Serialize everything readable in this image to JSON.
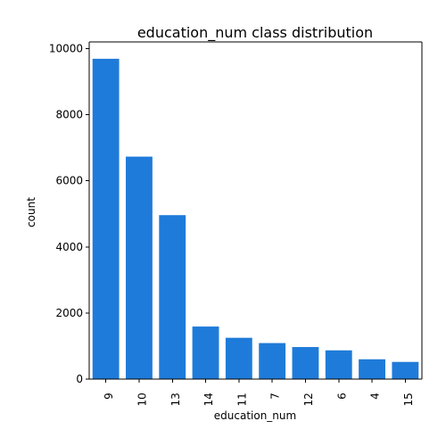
{
  "chart_data": {
    "type": "bar",
    "title": "education_num class distribution",
    "xlabel": "education_num",
    "ylabel": "count",
    "categories": [
      "9",
      "10",
      "13",
      "14",
      "11",
      "7",
      "12",
      "6",
      "4",
      "15"
    ],
    "values": [
      9690,
      6730,
      4960,
      1590,
      1250,
      1090,
      970,
      870,
      600,
      520
    ],
    "ylim": [
      0,
      10200
    ],
    "yticks": [
      0,
      2000,
      4000,
      6000,
      8000,
      10000
    ],
    "grid": false,
    "bar_color": "#1f7bd9"
  }
}
